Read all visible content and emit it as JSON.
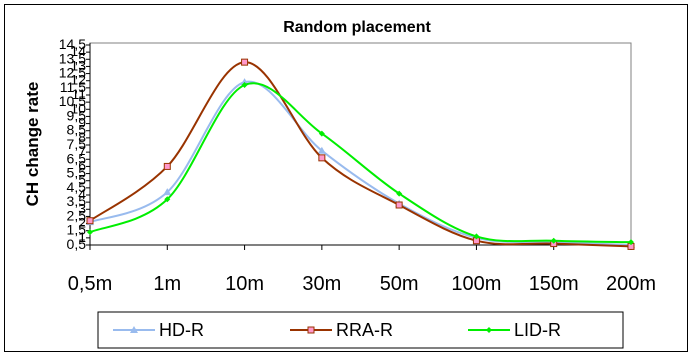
{
  "chart_data": {
    "type": "line",
    "title": "Random placement",
    "ylabel": "CH change rate",
    "xlabel": "",
    "categories": [
      "0,5m",
      "1m",
      "10m",
      "30m",
      "50m",
      "100m",
      "150m",
      "200m"
    ],
    "y_ticks": [
      "0,5",
      "1",
      "1,5",
      "2",
      "2,5",
      "3",
      "3,5",
      "4",
      "4,5",
      "5",
      "5,5",
      "6",
      "6,5",
      "7",
      "7,5",
      "8",
      "8,5",
      "9",
      "9,5",
      "10",
      "10,5",
      "11",
      "11,5",
      "12",
      "12,5",
      "13",
      "13,5",
      "14",
      "14,5"
    ],
    "ylim": [
      0.5,
      14.5
    ],
    "series": [
      {
        "name": "HD-R",
        "color": "#99bbee",
        "marker": "triangle",
        "values": [
          2.1,
          4.2,
          11.9,
          7.1,
          3.4,
          1.0,
          0.7,
          0.5
        ]
      },
      {
        "name": "RRA-R",
        "color": "#993300",
        "marker": "square",
        "values": [
          2.2,
          6.0,
          13.3,
          6.6,
          3.3,
          0.8,
          0.6,
          0.4
        ]
      },
      {
        "name": "LID-R",
        "color": "#00ee00",
        "marker": "diamond",
        "values": [
          1.4,
          3.7,
          11.7,
          8.3,
          4.1,
          1.1,
          0.8,
          0.7
        ]
      }
    ],
    "legend_position": "bottom",
    "grid": false
  }
}
